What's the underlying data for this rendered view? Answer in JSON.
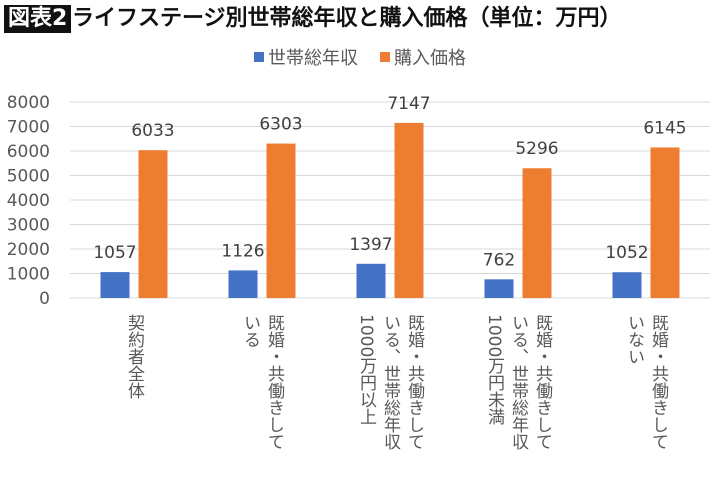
{
  "header": {
    "badge": "図表2",
    "title": "ライフステージ別世帯総年収と購入価格（単位：万円）"
  },
  "chart_data": {
    "type": "bar",
    "title": "",
    "xlabel": "",
    "ylabel": "",
    "ylim": [
      0,
      8000
    ],
    "yticks": [
      0,
      1000,
      2000,
      3000,
      4000,
      5000,
      6000,
      7000,
      8000
    ],
    "grid": true,
    "legend_position": "top",
    "categories": [
      "契約者全体",
      "既婚・共働きして\nいる",
      "既婚・共働きして\nいる、世帯総年収\n1000万円以上",
      "既婚・共働きして\nいる、世帯総年収\n1000万円未満",
      "既婚・共働きして\nいない"
    ],
    "series": [
      {
        "name": "世帯総年収",
        "color": "#4472C4",
        "values": [
          1057,
          1126,
          1397,
          762,
          1052
        ]
      },
      {
        "name": "購入価格",
        "color": "#ED7D31",
        "values": [
          6033,
          6303,
          7147,
          5296,
          6145
        ]
      }
    ]
  }
}
